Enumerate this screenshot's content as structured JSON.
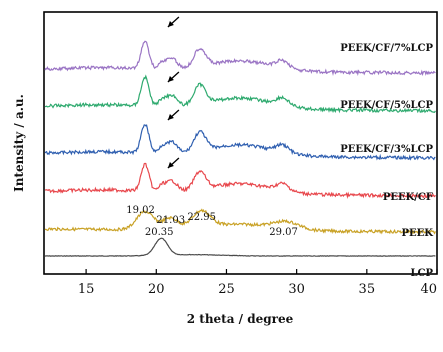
{
  "chart_data": {
    "type": "line",
    "xlabel": "2 theta / degree",
    "ylabel": "Intensity / a.u.",
    "xlim": [
      12,
      40
    ],
    "xticks": [
      15,
      20,
      25,
      30,
      35,
      40
    ],
    "grid": false,
    "series": [
      {
        "name": "LCP",
        "color": "#4a4a4a",
        "peaks": [
          {
            "x": 20.35,
            "label": "20.35"
          }
        ]
      },
      {
        "name": "PEEK",
        "color": "#c9a227",
        "peaks": [
          {
            "x": 19.02,
            "label": "19.02"
          },
          {
            "x": 21.03,
            "label": "21.03"
          },
          {
            "x": 22.95,
            "label": "22.95"
          },
          {
            "x": 29.07,
            "label": "29.07"
          }
        ]
      },
      {
        "name": "PEEK/CF",
        "color": "#e8484d",
        "peaks": []
      },
      {
        "name": "PEEK/CF/3%LCP",
        "color": "#2f5fb0",
        "peaks": []
      },
      {
        "name": "PEEK/CF/5%LCP",
        "color": "#2faa6f",
        "peaks": []
      },
      {
        "name": "PEEK/CF/7%LCP",
        "color": "#9a74c4",
        "peaks": []
      }
    ],
    "annotations": [
      {
        "type": "arrow",
        "x": 20.4,
        "series": "PEEK/CF"
      },
      {
        "type": "arrow",
        "x": 20.4,
        "series": "PEEK/CF/3%LCP"
      },
      {
        "type": "arrow",
        "x": 20.4,
        "series": "PEEK/CF/5%LCP"
      },
      {
        "type": "arrow",
        "x": 20.4,
        "series": "PEEK/CF/7%LCP"
      }
    ]
  }
}
